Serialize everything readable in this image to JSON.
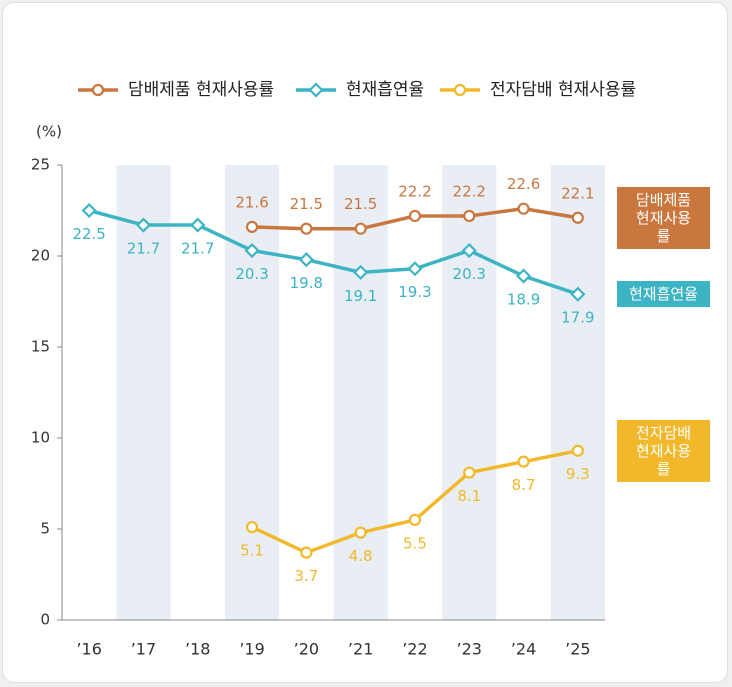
{
  "chart_data": {
    "type": "line",
    "y_unit": "(%)",
    "categories": [
      "’16",
      "’17",
      "’18",
      "’19",
      "’20",
      "’21",
      "’22",
      "’23",
      "’24",
      "’25"
    ],
    "series": [
      {
        "name": "담배제품 현재사용률",
        "color": "#c9773f",
        "marker": "circle",
        "values": [
          null,
          null,
          null,
          21.6,
          21.5,
          21.5,
          22.2,
          22.2,
          22.6,
          22.1
        ]
      },
      {
        "name": "현재흡연율",
        "color": "#3db4c4",
        "marker": "diamond",
        "values": [
          22.5,
          21.7,
          21.7,
          20.3,
          19.8,
          19.1,
          19.3,
          20.3,
          18.9,
          17.9
        ]
      },
      {
        "name": "전자담배 현재사용률",
        "color": "#f2b82b",
        "marker": "circle",
        "values": [
          null,
          null,
          null,
          5.1,
          3.7,
          4.8,
          5.5,
          8.1,
          8.7,
          9.3
        ]
      }
    ],
    "ylim": [
      0,
      25
    ],
    "yticks": [
      0,
      5,
      10,
      15,
      20,
      25
    ],
    "band_color": "#e9eef5"
  }
}
